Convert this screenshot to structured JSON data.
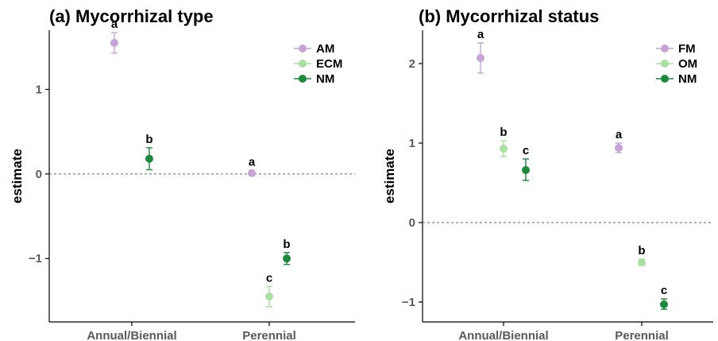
{
  "colors": {
    "AM": "#c7a4d8",
    "FM": "#c7a4d8",
    "ECM": "#a8e0a0",
    "OM": "#a8e0a0",
    "NM": "#1a8a3a",
    "axis": "#000000",
    "ref_line": "#666666"
  },
  "chart_data": [
    {
      "type": "scatter",
      "title": "(a) Mycorrhizal type",
      "xlabel": "",
      "ylabel": "estimate",
      "categories": [
        "Annual/Biennial",
        "Perennial"
      ],
      "ylim": [
        -1.75,
        1.7
      ],
      "yticks": [
        1,
        0,
        -1
      ],
      "ytick_labels": [
        "1",
        "0",
        "−1"
      ],
      "reference_line": 0,
      "legend_position": "top-right",
      "series": [
        {
          "name": "AM",
          "color_key": "AM",
          "points": [
            {
              "category": "Annual/Biennial",
              "estimate": 1.55,
              "lower": 1.43,
              "upper": 1.67,
              "label": "a"
            },
            {
              "category": "Perennial",
              "estimate": 0.01,
              "lower": -0.02,
              "upper": 0.04,
              "label": "a"
            }
          ]
        },
        {
          "name": "ECM",
          "color_key": "ECM",
          "points": [
            {
              "category": "Perennial",
              "estimate": -1.45,
              "lower": -1.57,
              "upper": -1.33,
              "label": "c"
            }
          ]
        },
        {
          "name": "NM",
          "color_key": "NM",
          "points": [
            {
              "category": "Annual/Biennial",
              "estimate": 0.18,
              "lower": 0.05,
              "upper": 0.31,
              "label": "b"
            },
            {
              "category": "Perennial",
              "estimate": -1.0,
              "lower": -1.07,
              "upper": -0.93,
              "label": "b"
            }
          ]
        }
      ]
    },
    {
      "type": "scatter",
      "title": "(b) Mycorrhizal status",
      "xlabel": "",
      "ylabel": "estimate",
      "categories": [
        "Annual/Biennial",
        "Perennial"
      ],
      "ylim": [
        -1.25,
        2.42
      ],
      "yticks": [
        2,
        1,
        0,
        -1
      ],
      "ytick_labels": [
        "2",
        "1",
        "0",
        "−1"
      ],
      "reference_line": 0,
      "legend_position": "top-right",
      "series": [
        {
          "name": "FM",
          "color_key": "FM",
          "points": [
            {
              "category": "Annual/Biennial",
              "estimate": 2.07,
              "lower": 1.88,
              "upper": 2.26,
              "label": "a"
            },
            {
              "category": "Perennial",
              "estimate": 0.94,
              "lower": 0.88,
              "upper": 1.0,
              "label": "a"
            }
          ]
        },
        {
          "name": "OM",
          "color_key": "OM",
          "points": [
            {
              "category": "Annual/Biennial",
              "estimate": 0.93,
              "lower": 0.83,
              "upper": 1.03,
              "label": "b"
            },
            {
              "category": "Perennial",
              "estimate": -0.5,
              "lower": -0.54,
              "upper": -0.46,
              "label": "b"
            }
          ]
        },
        {
          "name": "NM",
          "color_key": "NM",
          "points": [
            {
              "category": "Annual/Biennial",
              "estimate": 0.66,
              "lower": 0.53,
              "upper": 0.8,
              "label": "c"
            },
            {
              "category": "Perennial",
              "estimate": -1.03,
              "lower": -1.09,
              "upper": -0.96,
              "label": "c"
            }
          ]
        }
      ]
    }
  ]
}
